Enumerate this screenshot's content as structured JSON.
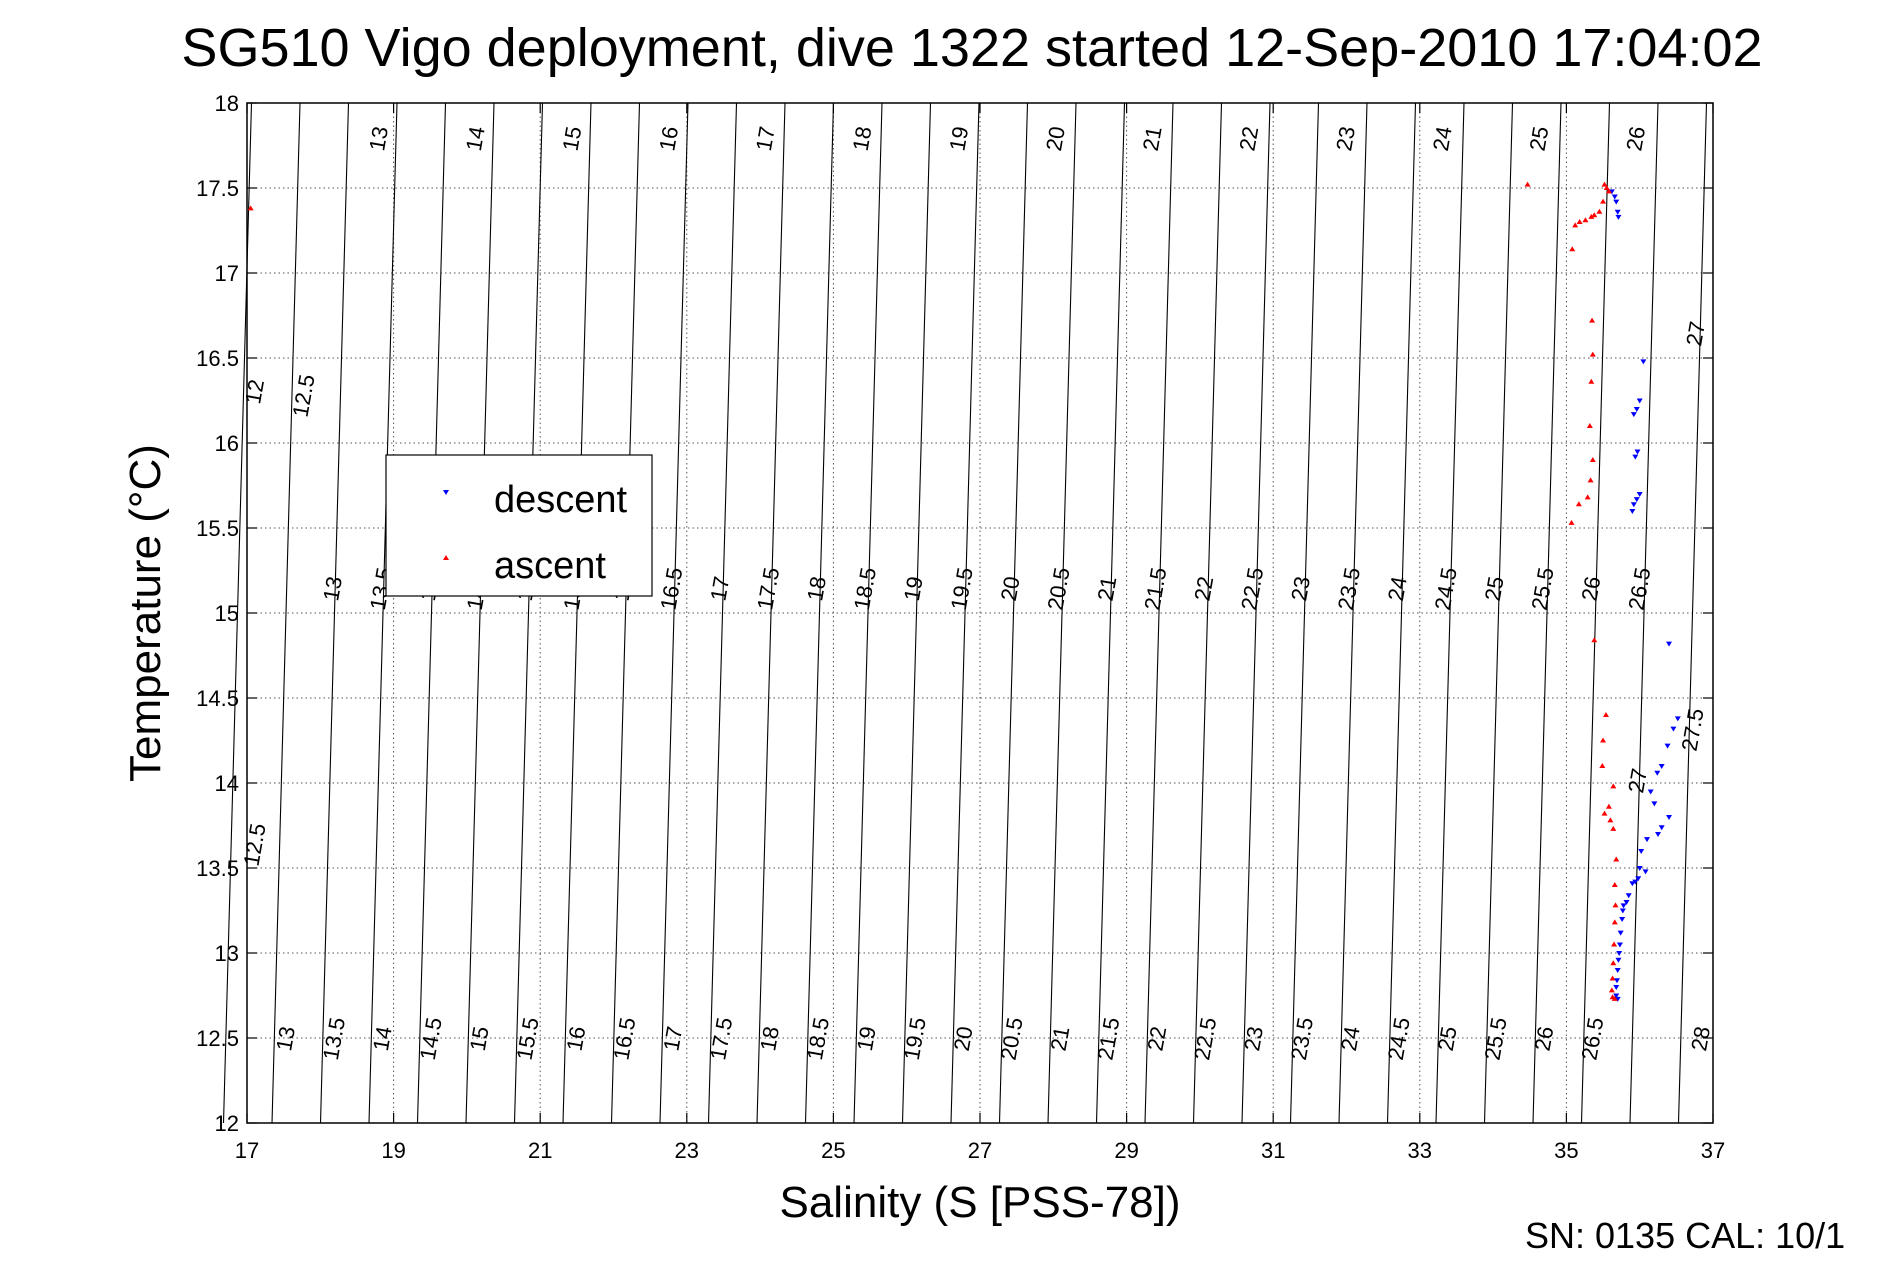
{
  "chart_data": {
    "type": "scatter",
    "title": "SG510 Vigo deployment, dive 1322 started 12-Sep-2010 17:04:02",
    "xlabel": "Salinity (S [PSS-78])",
    "ylabel": "Temperature (°C)",
    "xlim": [
      17,
      37
    ],
    "ylim": [
      12,
      18
    ],
    "xticks": [
      17,
      19,
      21,
      23,
      25,
      27,
      29,
      31,
      33,
      35,
      37
    ],
    "yticks": [
      12,
      12.5,
      13,
      13.5,
      14,
      14.5,
      15,
      15.5,
      16,
      16.5,
      17,
      17.5,
      18
    ],
    "grid": true,
    "legend_position": "upper-left",
    "footer": "SN: 0135  CAL: 10/1",
    "density_contours": {
      "top_labels": [
        "13",
        "14",
        "15",
        "16",
        "17",
        "18",
        "19",
        "20",
        "21",
        "22",
        "23",
        "24",
        "25",
        "26"
      ],
      "middle_labels": [
        "13",
        "13.5",
        "14",
        "14.5",
        "15",
        "15.5",
        "16",
        "16.5",
        "17",
        "17.5",
        "18",
        "18.5",
        "19",
        "19.5",
        "20",
        "20.5",
        "21",
        "21.5",
        "22",
        "22.5",
        "23",
        "23.5",
        "24",
        "24.5",
        "25",
        "25.5",
        "26",
        "26.5"
      ],
      "bottom_labels": [
        "13",
        "13.5",
        "14",
        "14.5",
        "15",
        "15.5",
        "16",
        "16.5",
        "17",
        "17.5",
        "18",
        "18.5",
        "19",
        "19.5",
        "20",
        "20.5",
        "21",
        "21.5",
        "22",
        "22.5",
        "23",
        "23.5",
        "24",
        "24.5",
        "25",
        "25.5",
        "26",
        "26.5"
      ],
      "left_labels": [
        "12",
        "12.5",
        "12.5"
      ],
      "right_labels": [
        "27",
        "27",
        "27.5",
        "28"
      ]
    },
    "series": [
      {
        "name": "descent",
        "color": "#0000ff",
        "marker": "triangle-down",
        "points": [
          [
            35.62,
            17.48
          ],
          [
            35.66,
            17.45
          ],
          [
            35.68,
            17.42
          ],
          [
            35.7,
            17.36
          ],
          [
            35.71,
            17.33
          ],
          [
            36.05,
            16.48
          ],
          [
            36.0,
            16.25
          ],
          [
            35.96,
            16.2
          ],
          [
            35.92,
            16.17
          ],
          [
            35.97,
            15.95
          ],
          [
            35.94,
            15.92
          ],
          [
            36.0,
            15.7
          ],
          [
            35.96,
            15.67
          ],
          [
            35.92,
            15.64
          ],
          [
            35.9,
            15.6
          ],
          [
            36.4,
            14.82
          ],
          [
            36.52,
            14.38
          ],
          [
            36.46,
            14.32
          ],
          [
            36.38,
            14.22
          ],
          [
            36.3,
            14.1
          ],
          [
            36.24,
            14.06
          ],
          [
            36.15,
            13.95
          ],
          [
            36.2,
            13.88
          ],
          [
            36.4,
            13.8
          ],
          [
            36.3,
            13.74
          ],
          [
            36.25,
            13.7
          ],
          [
            36.1,
            13.67
          ],
          [
            36.02,
            13.6
          ],
          [
            36.0,
            13.5
          ],
          [
            36.08,
            13.48
          ],
          [
            35.98,
            13.44
          ],
          [
            35.94,
            13.42
          ],
          [
            35.9,
            13.41
          ],
          [
            35.85,
            13.34
          ],
          [
            35.82,
            13.3
          ],
          [
            35.78,
            13.28
          ],
          [
            35.77,
            13.25
          ],
          [
            35.76,
            13.2
          ],
          [
            35.74,
            13.12
          ],
          [
            35.73,
            13.05
          ],
          [
            35.72,
            13.0
          ],
          [
            35.71,
            12.96
          ],
          [
            35.7,
            12.9
          ],
          [
            35.69,
            12.84
          ],
          [
            35.68,
            12.8
          ],
          [
            35.68,
            12.75
          ],
          [
            35.7,
            12.73
          ]
        ]
      },
      {
        "name": "ascent",
        "color": "#ff0000",
        "marker": "triangle-up",
        "points": [
          [
            17.05,
            17.38
          ],
          [
            34.47,
            17.52
          ],
          [
            35.52,
            17.52
          ],
          [
            35.55,
            17.5
          ],
          [
            35.58,
            17.48
          ],
          [
            35.5,
            17.42
          ],
          [
            35.45,
            17.36
          ],
          [
            35.38,
            17.34
          ],
          [
            35.34,
            17.33
          ],
          [
            35.26,
            17.31
          ],
          [
            35.18,
            17.3
          ],
          [
            35.12,
            17.28
          ],
          [
            35.08,
            17.14
          ],
          [
            35.35,
            16.72
          ],
          [
            35.36,
            16.52
          ],
          [
            35.34,
            16.36
          ],
          [
            35.32,
            16.1
          ],
          [
            35.36,
            15.9
          ],
          [
            35.33,
            15.78
          ],
          [
            35.29,
            15.68
          ],
          [
            35.17,
            15.64
          ],
          [
            35.07,
            15.53
          ],
          [
            35.38,
            14.84
          ],
          [
            35.54,
            14.4
          ],
          [
            35.5,
            14.25
          ],
          [
            35.49,
            14.1
          ],
          [
            35.64,
            13.98
          ],
          [
            35.58,
            13.86
          ],
          [
            35.52,
            13.82
          ],
          [
            35.6,
            13.78
          ],
          [
            35.64,
            13.73
          ],
          [
            35.68,
            13.55
          ],
          [
            35.66,
            13.4
          ],
          [
            35.67,
            13.28
          ],
          [
            35.66,
            13.18
          ],
          [
            35.65,
            13.05
          ],
          [
            35.64,
            12.94
          ],
          [
            35.63,
            12.85
          ],
          [
            35.62,
            12.78
          ],
          [
            35.63,
            12.74
          ],
          [
            35.66,
            12.73
          ]
        ]
      }
    ]
  }
}
